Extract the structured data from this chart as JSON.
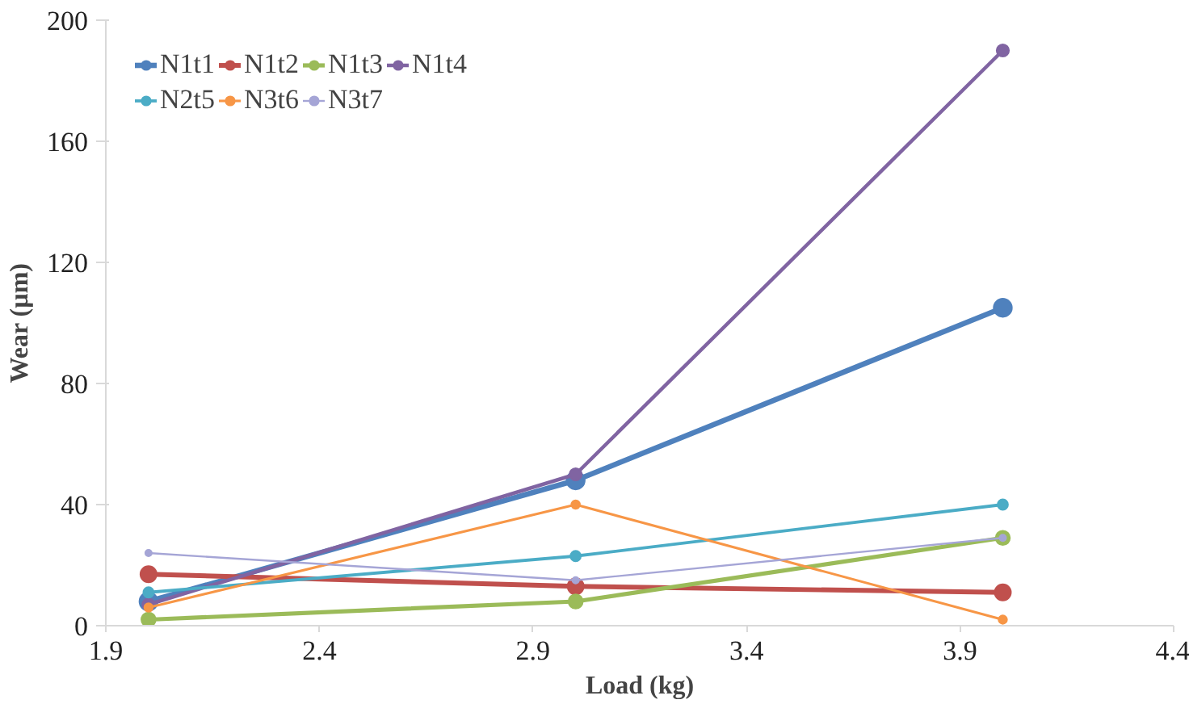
{
  "chart_data": {
    "type": "line",
    "xlabel": "Load (kg)",
    "ylabel": "Wear (µm)",
    "x": [
      2,
      3,
      4
    ],
    "xlim": [
      1.9,
      4.4
    ],
    "xticks": [
      {
        "value": 1.9,
        "label": "1.9"
      },
      {
        "value": 2.4,
        "label": "2.4"
      },
      {
        "value": 2.9,
        "label": "2.9"
      },
      {
        "value": 3.4,
        "label": "3.4"
      },
      {
        "value": 3.9,
        "label": "3.9"
      },
      {
        "value": 4.4,
        "label": "4.4"
      }
    ],
    "ylim": [
      0,
      200
    ],
    "yticks": [
      0,
      40,
      80,
      120,
      160,
      200
    ],
    "grid": false,
    "legend": "top left",
    "marker": "circle",
    "line_style": "solid",
    "series": [
      {
        "name": "N1t1",
        "color": "#4f81bd",
        "values": [
          8,
          48,
          105
        ]
      },
      {
        "name": "N1t2",
        "color": "#c0504d",
        "values": [
          17,
          13,
          11
        ]
      },
      {
        "name": "N1t3",
        "color": "#9bbb59",
        "values": [
          2,
          8,
          29
        ]
      },
      {
        "name": "N1t4",
        "color": "#8064a2",
        "values": [
          7,
          50,
          190
        ]
      },
      {
        "name": "N2t5",
        "color": "#4bacc6",
        "values": [
          11,
          23,
          40
        ]
      },
      {
        "name": "N3t6",
        "color": "#f79646",
        "values": [
          6,
          40,
          2
        ]
      },
      {
        "name": "N3t7",
        "color": "#a5a5d6",
        "values": [
          24,
          15,
          29
        ]
      }
    ]
  }
}
